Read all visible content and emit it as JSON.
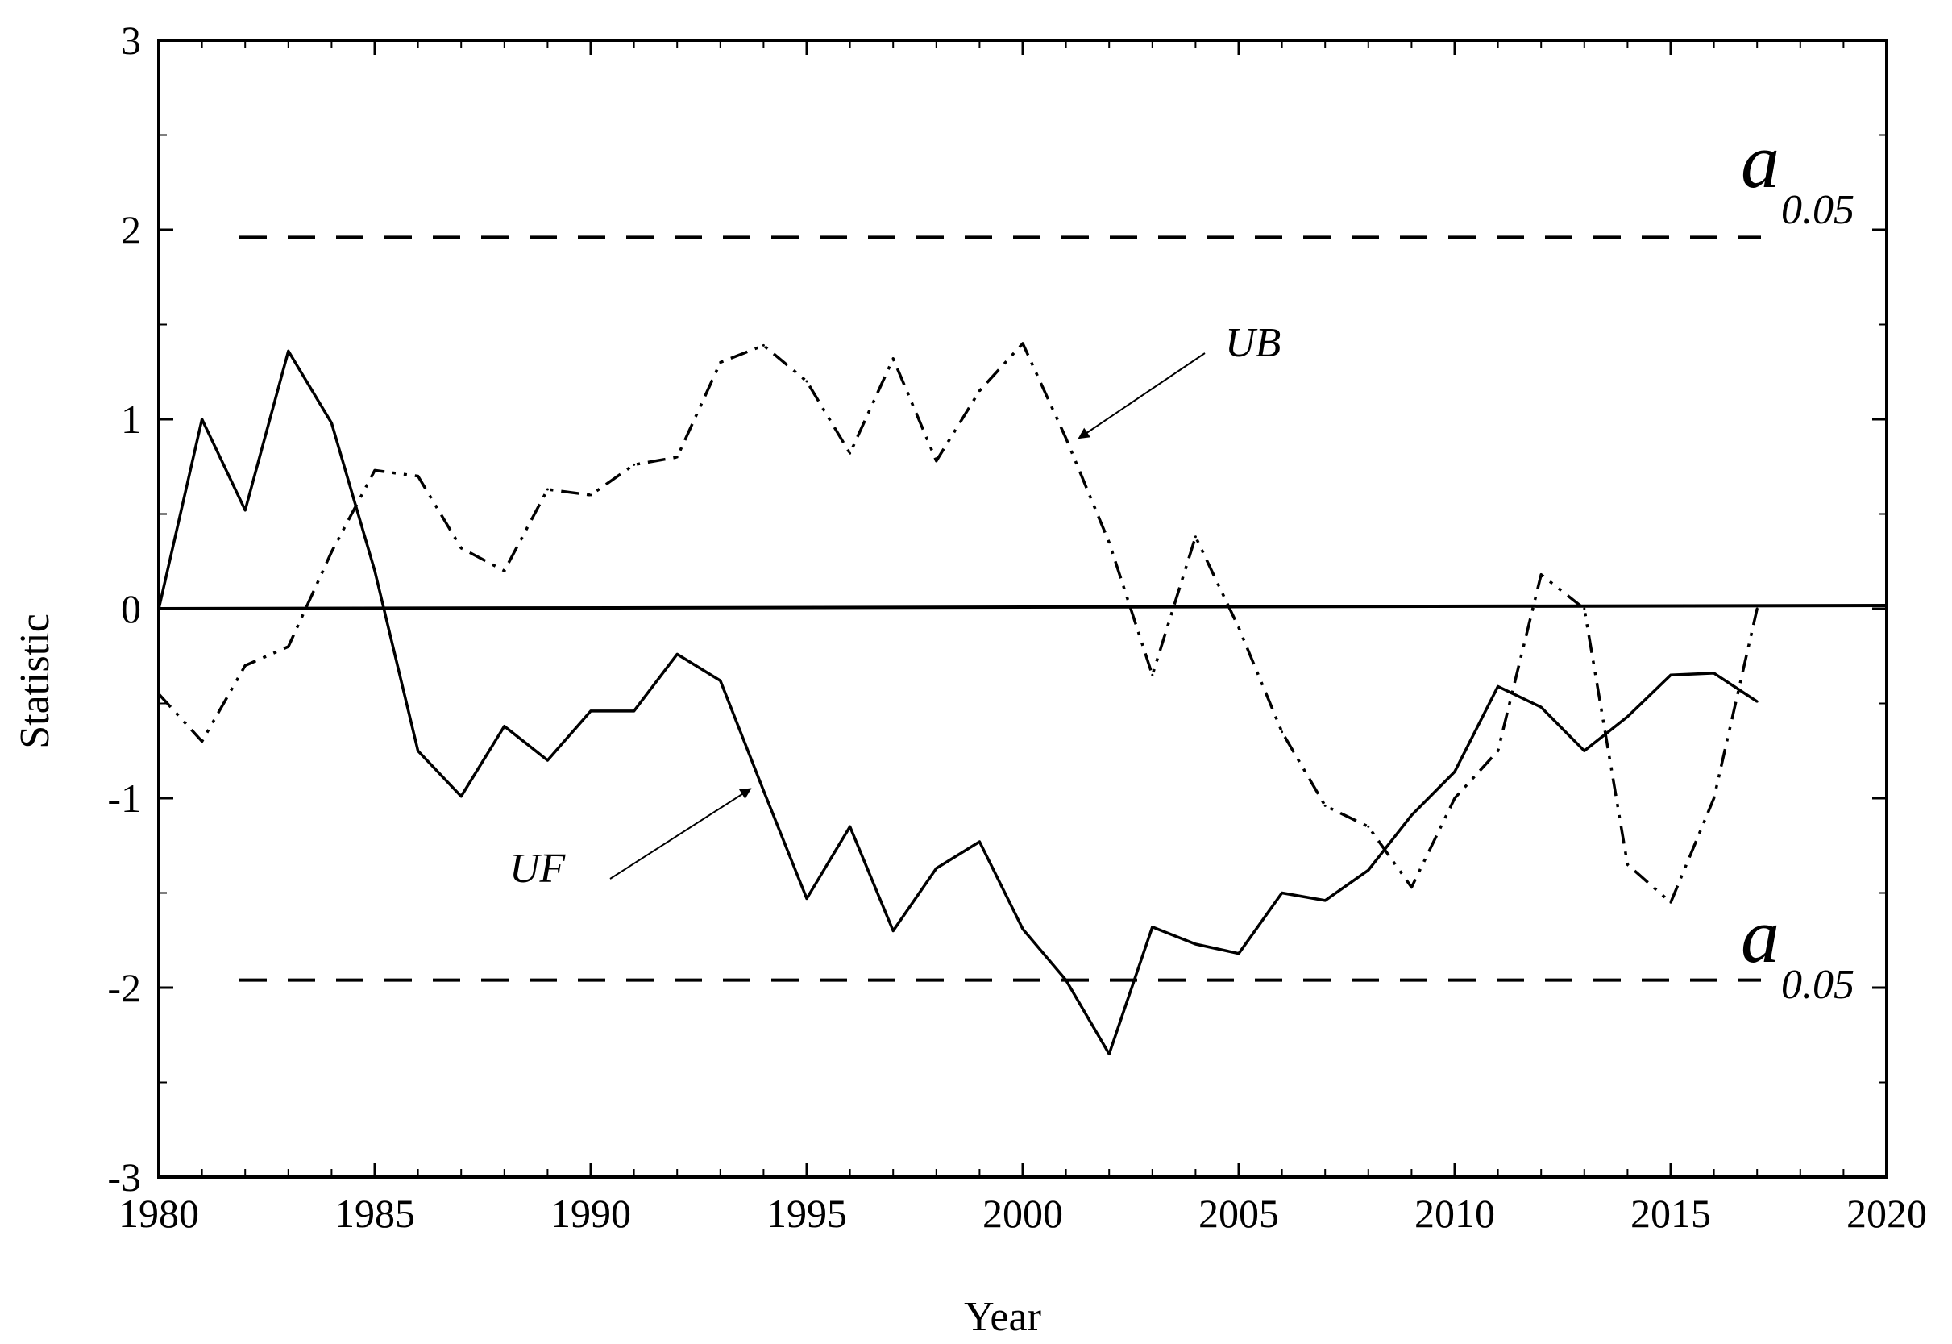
{
  "chart_data": {
    "type": "line",
    "xlabel": "Year",
    "ylabel": "Statistic",
    "xlim": [
      1980,
      2020
    ],
    "ylim": [
      -3,
      3
    ],
    "x_ticks": [
      1980,
      1985,
      1990,
      1995,
      2000,
      2005,
      2010,
      2015,
      2020
    ],
    "y_ticks": [
      -3,
      -2,
      -1,
      0,
      1,
      2,
      3
    ],
    "x_tick_labels": [
      "1980",
      "1985",
      "1990",
      "1995",
      "2000",
      "2005",
      "2010",
      "2015",
      "2020"
    ],
    "y_tick_labels": [
      "-3",
      "-2",
      "-1",
      "0",
      "1",
      "2",
      "3"
    ],
    "grid": false,
    "series": [
      {
        "name": "UF",
        "style": "solid",
        "color": "#000000",
        "x": [
          1980,
          1981,
          1982,
          1983,
          1984,
          1985,
          1986,
          1987,
          1988,
          1989,
          1990,
          1991,
          1992,
          1993,
          1994,
          1995,
          1996,
          1997,
          1998,
          1999,
          2000,
          2001,
          2002,
          2003,
          2004,
          2005,
          2006,
          2007,
          2008,
          2009,
          2010,
          2011,
          2012,
          2013,
          2014,
          2015,
          2016,
          2017
        ],
        "values": [
          0,
          1.0,
          0.52,
          1.36,
          0.98,
          0.2,
          -0.75,
          -0.99,
          -0.62,
          -0.8,
          -0.54,
          -0.54,
          -0.24,
          -0.38,
          -0.96,
          -1.53,
          -1.15,
          -1.7,
          -1.37,
          -1.23,
          -1.69,
          -1.96,
          -2.35,
          -1.68,
          -1.77,
          -1.82,
          -1.5,
          -1.54,
          -1.38,
          -1.09,
          -0.86,
          -0.41,
          -0.52,
          -0.75,
          -0.57,
          -0.35,
          -0.34,
          -0.49
        ]
      },
      {
        "name": "UB",
        "style": "dash-dot-dot",
        "color": "#000000",
        "x": [
          1980,
          1981,
          1982,
          1983,
          1984,
          1985,
          1986,
          1987,
          1988,
          1989,
          1990,
          1991,
          1992,
          1993,
          1994,
          1995,
          1996,
          1997,
          1998,
          1999,
          2000,
          2001,
          2002,
          2003,
          2004,
          2005,
          2006,
          2007,
          2008,
          2009,
          2010,
          2011,
          2012,
          2013,
          2014,
          2015,
          2016,
          2017
        ],
        "values": [
          -0.45,
          -0.7,
          -0.3,
          -0.2,
          0.3,
          0.73,
          0.7,
          0.32,
          0.2,
          0.63,
          0.6,
          0.76,
          0.8,
          1.3,
          1.39,
          1.2,
          0.82,
          1.32,
          0.78,
          1.15,
          1.4,
          0.9,
          0.35,
          -0.35,
          0.38,
          -0.1,
          -0.65,
          -1.04,
          -1.15,
          -1.47,
          -1.0,
          -0.75,
          0.18,
          0.0,
          -1.35,
          -1.55,
          -1.0,
          0.0
        ]
      }
    ],
    "reference_lines": [
      {
        "y": 1.96,
        "style": "dashed",
        "label_main": "a",
        "label_sub": "0.05"
      },
      {
        "y": -1.96,
        "style": "dashed",
        "label_main": "a",
        "label_sub": "0.05"
      },
      {
        "y": 0,
        "style": "solid"
      }
    ],
    "annotations": [
      {
        "text": "UB",
        "target_x": 2001.3,
        "target_y": 0.9
      },
      {
        "text": "UF",
        "target_x": 1993.7,
        "target_y": -0.95
      }
    ]
  }
}
